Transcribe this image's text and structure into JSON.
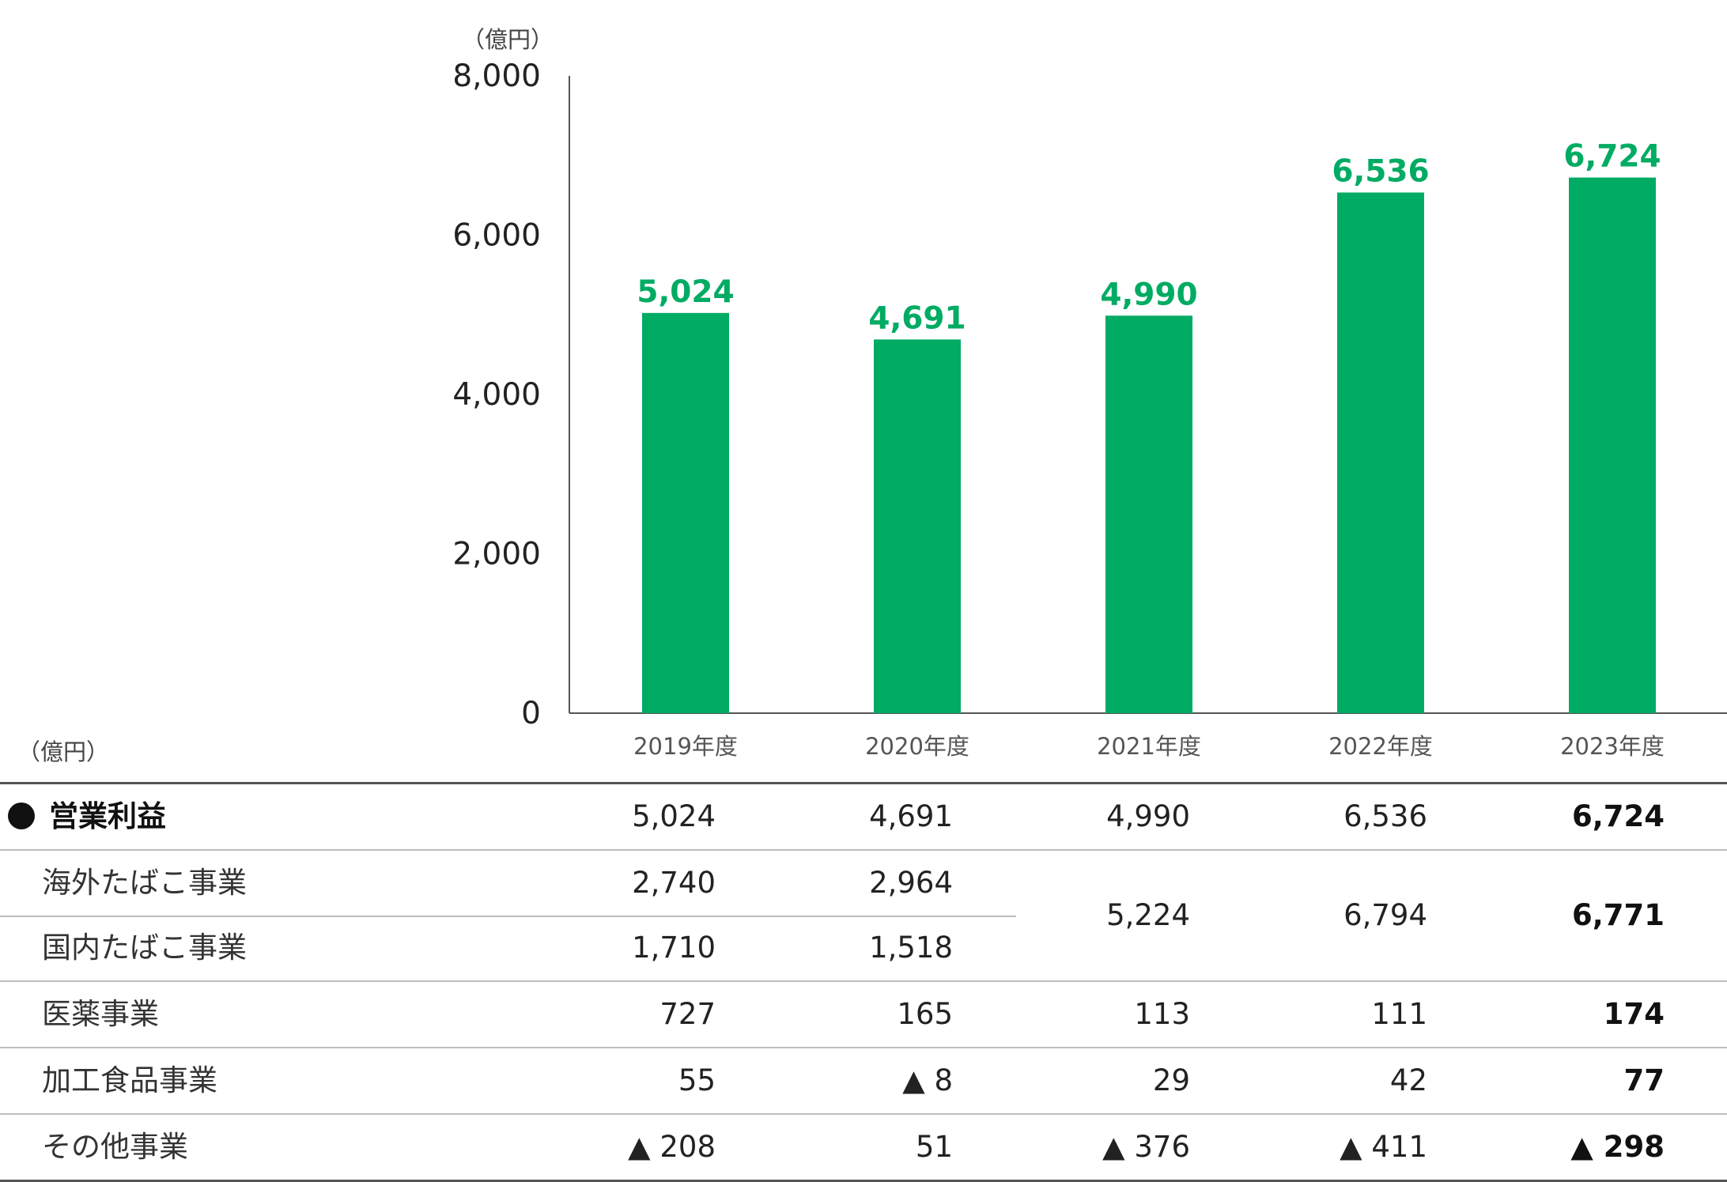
{
  "chart_data": {
    "type": "bar",
    "unit": "（億円）",
    "categories": [
      "2019年度",
      "2020年度",
      "2021年度",
      "2022年度",
      "2023年度"
    ],
    "values": [
      5024,
      4691,
      4990,
      6536,
      6724
    ],
    "value_labels": [
      "5,024",
      "4,691",
      "4,990",
      "6,536",
      "6,724"
    ],
    "yticks": [
      "0",
      "2,000",
      "4,000",
      "6,000",
      "8,000"
    ],
    "ylim": [
      0,
      8000
    ],
    "bar_color": "#00ab63",
    "label_color": "#00ab63",
    "grid": false
  },
  "table": {
    "unit": "（億円）",
    "total": {
      "label": "営業利益",
      "values": [
        "5,024",
        "4,691",
        "4,990",
        "6,536",
        "6,724"
      ]
    },
    "tobacco_overseas": {
      "label": "海外たばこ事業",
      "values": [
        "2,740",
        "2,964"
      ]
    },
    "tobacco_domestic": {
      "label": "国内たばこ事業",
      "values": [
        "1,710",
        "1,518"
      ]
    },
    "tobacco_combined": [
      "5,224",
      "6,794",
      "6,771"
    ],
    "pharma": {
      "label": "医薬事業",
      "values": [
        "727",
        "165",
        "113",
        "111",
        "174"
      ]
    },
    "food": {
      "label": "加工食品事業",
      "values": [
        "55",
        "▲ 8",
        "29",
        "42",
        "77"
      ]
    },
    "other": {
      "label": "その他事業",
      "values": [
        "▲ 208",
        "51",
        "▲ 376",
        "▲ 411",
        "▲ 298"
      ]
    }
  }
}
